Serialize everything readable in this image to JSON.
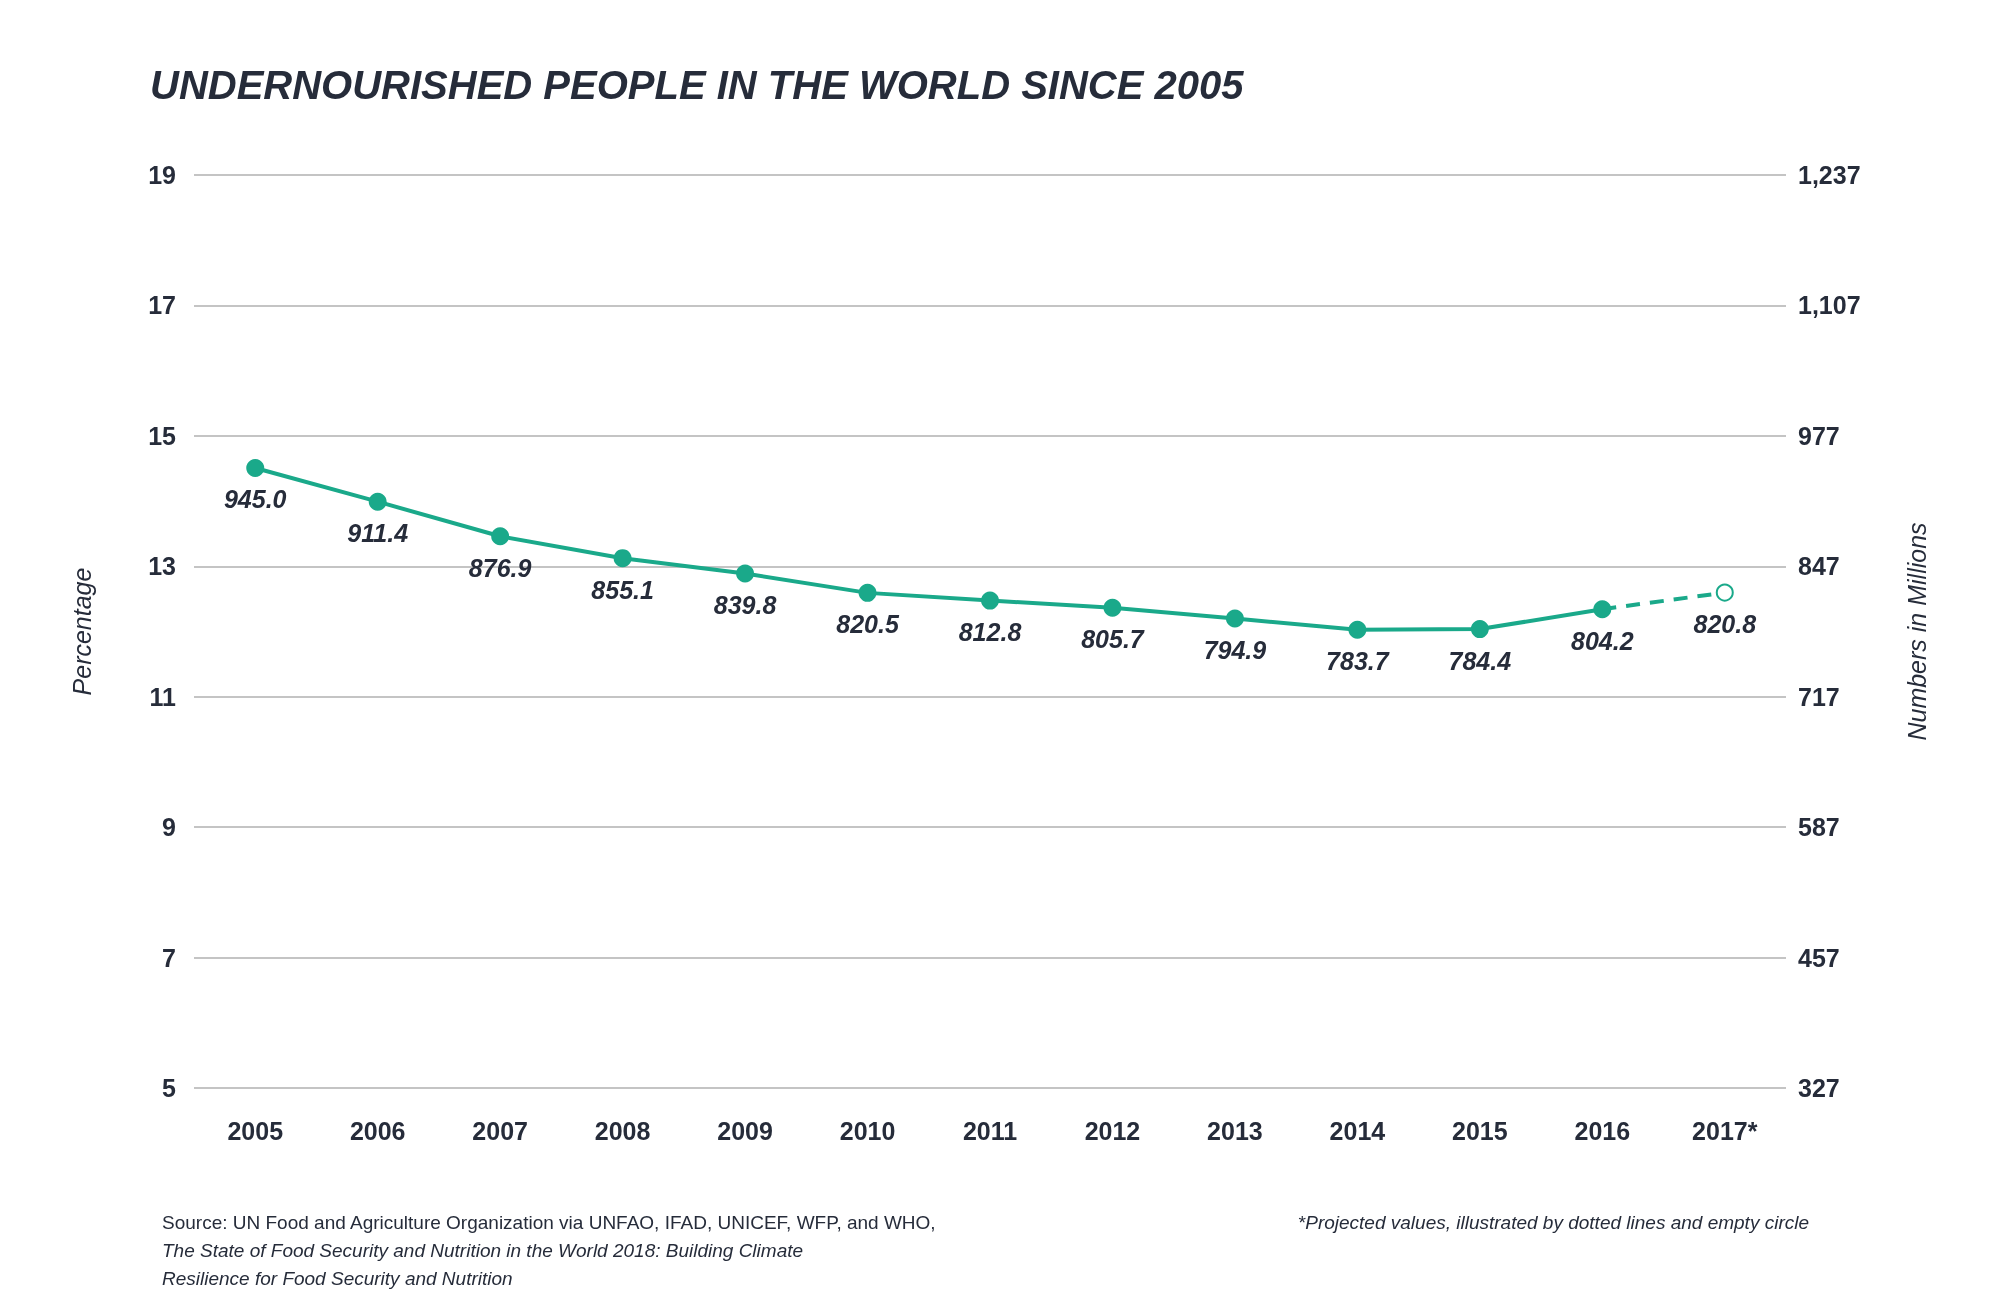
{
  "chart_data": {
    "type": "line",
    "title": "UNDERNOURISHED PEOPLE IN THE WORLD SINCE 2005",
    "ylabel": "Percentage",
    "y2label": "Numbers in Millions",
    "categories": [
      "2005",
      "2006",
      "2007",
      "2008",
      "2009",
      "2010",
      "2011",
      "2012",
      "2013",
      "2014",
      "2015",
      "2016",
      "2017*"
    ],
    "series": [
      {
        "color": "#1aa98a",
        "axis": "y2",
        "line_style": "solid",
        "values": [
          945.0,
          911.4,
          876.9,
          855.1,
          839.8,
          820.5,
          812.8,
          805.7,
          794.9,
          783.7,
          784.4,
          804.2,
          null
        ],
        "value_labels": [
          "945.0",
          "911.4",
          "876.9",
          "855.1",
          "839.8",
          "820.5",
          "812.8",
          "805.7",
          "794.9",
          "783.7",
          "784.4",
          "804.2",
          null
        ]
      },
      {
        "color": "#1aa98a",
        "axis": "y2",
        "line_style": "dashed",
        "values": [
          null,
          null,
          null,
          null,
          null,
          null,
          null,
          null,
          null,
          null,
          null,
          804.2,
          820.8
        ],
        "value_labels": [
          null,
          null,
          null,
          null,
          null,
          null,
          null,
          null,
          null,
          null,
          null,
          null,
          "820.8"
        ]
      }
    ],
    "ylim": [
      5,
      19
    ],
    "yticks": [
      5,
      7,
      9,
      11,
      13,
      15,
      17,
      19
    ],
    "y2lim": [
      327,
      1237
    ],
    "y2ticks": [
      327,
      457,
      587,
      717,
      847,
      977,
      {
        "value": 1107,
        "label": "1,107"
      },
      {
        "value": 1237,
        "label": "1,237"
      }
    ],
    "grid": "y",
    "marker": "circle",
    "annotations": [
      "Source: UN Food and Agriculture Organization via UNFAO, IFAD, UNICEF, WFP, and WHO,",
      "The State of Food Security and Nutrition in the World 2018: Building Climate Resilience for Food Security and Nutrition",
      "*Projected values, illustrated by dotted lines and empty circle"
    ]
  }
}
